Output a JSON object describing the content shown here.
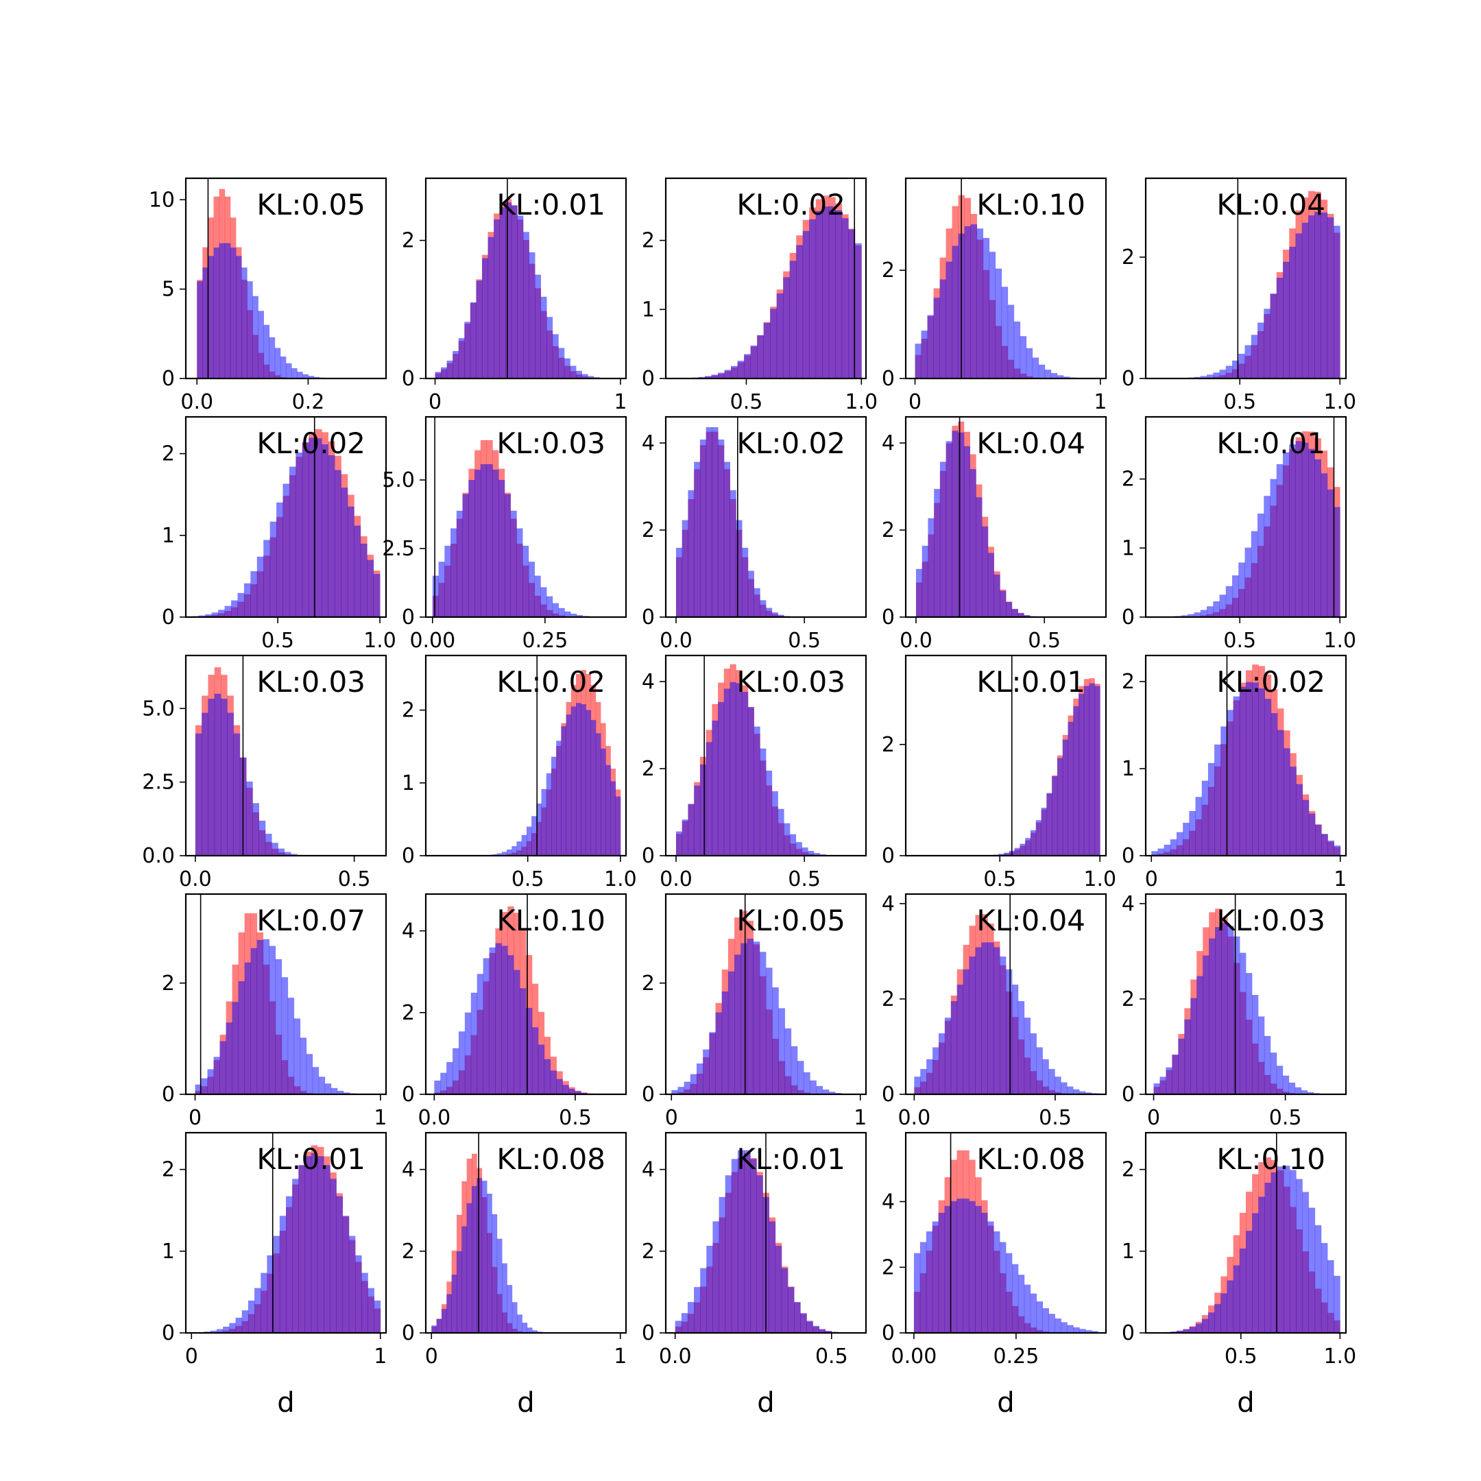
{
  "chart_data": {
    "type": "histogram-grid",
    "rows": 5,
    "cols": 5,
    "colors": {
      "series_a": "#ff0000",
      "series_b": "#0000ff",
      "overlap": "#7f3fbf",
      "marker": "#000000"
    },
    "series_opacity": 0.5,
    "xlabel": "d",
    "panels": [
      {
        "kl": "KL:0.05",
        "xlim": [
          -0.02,
          0.34
        ],
        "ylim": [
          0,
          11.2
        ],
        "xticks": [
          0.0,
          0.2
        ],
        "xtick_labels": [
          "0.0",
          "0.2"
        ],
        "yticks": [
          0,
          5,
          10
        ],
        "ytick_labels": [
          "0",
          "5",
          "10"
        ],
        "marker": 0.02,
        "a": {
          "mean": 0.045,
          "sd": 0.035,
          "low": 0.0,
          "high": 0.3,
          "peak": 10.6
        },
        "b": {
          "mean": 0.05,
          "sd": 0.055,
          "low": 0.0,
          "high": 0.3,
          "peak": 7.6
        }
      },
      {
        "kl": "KL:0.01",
        "xlim": [
          -0.05,
          1.03
        ],
        "ylim": [
          0,
          2.9
        ],
        "xticks": [
          0,
          1
        ],
        "xtick_labels": [
          "0",
          "1"
        ],
        "yticks": [
          0,
          2
        ],
        "ytick_labels": [
          "0",
          "2"
        ],
        "marker": 0.39,
        "a": {
          "mean": 0.39,
          "sd": 0.14,
          "low": 0.0,
          "high": 0.95,
          "peak": 2.6
        },
        "b": {
          "mean": 0.4,
          "sd": 0.15,
          "low": 0.0,
          "high": 0.95,
          "peak": 2.55
        }
      },
      {
        "kl": "KL:0.02",
        "xlim": [
          0.15,
          1.02
        ],
        "ylim": [
          0,
          2.9
        ],
        "xticks": [
          0.5,
          1.0
        ],
        "xtick_labels": [
          "0.5",
          "1.0"
        ],
        "yticks": [
          0,
          1,
          2
        ],
        "ytick_labels": [
          "0",
          "1",
          "2"
        ],
        "marker": 0.97,
        "a": {
          "mean": 0.85,
          "sd": 0.17,
          "low": 0.15,
          "high": 1.0,
          "peak": 2.65
        },
        "b": {
          "mean": 0.86,
          "sd": 0.18,
          "low": 0.15,
          "high": 1.0,
          "peak": 2.5
        }
      },
      {
        "kl": "KL:0.10",
        "xlim": [
          -0.05,
          1.03
        ],
        "ylim": [
          0,
          3.7
        ],
        "xticks": [
          0,
          1
        ],
        "xtick_labels": [
          "0",
          "1"
        ],
        "yticks": [
          0,
          2
        ],
        "ytick_labels": [
          "0",
          "2"
        ],
        "marker": 0.25,
        "a": {
          "mean": 0.26,
          "sd": 0.12,
          "low": 0.0,
          "high": 1.0,
          "peak": 3.4
        },
        "b": {
          "mean": 0.31,
          "sd": 0.17,
          "low": 0.0,
          "high": 1.0,
          "peak": 2.85
        }
      },
      {
        "kl": "KL:0.04",
        "xlim": [
          0.03,
          1.03
        ],
        "ylim": [
          0,
          3.3
        ],
        "xticks": [
          0.5,
          1.0
        ],
        "xtick_labels": [
          "0.5",
          "1.0"
        ],
        "yticks": [
          0,
          2
        ],
        "ytick_labels": [
          "0",
          "2"
        ],
        "marker": 0.49,
        "a": {
          "mean": 0.87,
          "sd": 0.16,
          "low": 0.05,
          "high": 1.0,
          "peak": 3.1
        },
        "b": {
          "mean": 0.9,
          "sd": 0.2,
          "low": 0.05,
          "high": 1.0,
          "peak": 2.75
        }
      },
      {
        "kl": "KL:0.02",
        "xlim": [
          0.05,
          1.03
        ],
        "ylim": [
          0,
          2.45
        ],
        "xticks": [
          0.5,
          1.0
        ],
        "xtick_labels": [
          "0.5",
          "1.0"
        ],
        "yticks": [
          0,
          1,
          2
        ],
        "ytick_labels": [
          "0",
          "1",
          "2"
        ],
        "marker": 0.68,
        "a": {
          "mean": 0.7,
          "sd": 0.17,
          "low": 0.05,
          "high": 1.0,
          "peak": 2.3
        },
        "b": {
          "mean": 0.68,
          "sd": 0.18,
          "low": 0.05,
          "high": 1.0,
          "peak": 2.2
        }
      },
      {
        "kl": "KL:0.03",
        "xlim": [
          -0.015,
          0.43
        ],
        "ylim": [
          0,
          7.3
        ],
        "xticks": [
          0.0,
          0.25
        ],
        "xtick_labels": [
          "0.00",
          "0.25"
        ],
        "yticks": [
          0,
          2.5,
          5.0
        ],
        "ytick_labels": [
          "0",
          "2.5",
          "5.0"
        ],
        "marker": 0.005,
        "a": {
          "mean": 0.12,
          "sd": 0.055,
          "low": 0.0,
          "high": 0.4,
          "peak": 6.5
        },
        "b": {
          "mean": 0.12,
          "sd": 0.07,
          "low": 0.0,
          "high": 0.4,
          "peak": 5.6
        }
      },
      {
        "kl": "KL:0.02",
        "xlim": [
          -0.04,
          0.74
        ],
        "ylim": [
          0,
          4.6
        ],
        "xticks": [
          0.0,
          0.5
        ],
        "xtick_labels": [
          "0.0",
          "0.5"
        ],
        "yticks": [
          0,
          2,
          4
        ],
        "ytick_labels": [
          "0",
          "2",
          "4"
        ],
        "marker": 0.24,
        "a": {
          "mean": 0.14,
          "sd": 0.085,
          "low": 0.0,
          "high": 0.7,
          "peak": 4.3
        },
        "b": {
          "mean": 0.14,
          "sd": 0.09,
          "low": 0.0,
          "high": 0.7,
          "peak": 4.4
        }
      },
      {
        "kl": "KL:0.04",
        "xlim": [
          -0.04,
          0.74
        ],
        "ylim": [
          0,
          4.6
        ],
        "xticks": [
          0.0,
          0.5
        ],
        "xtick_labels": [
          "0.0",
          "0.5"
        ],
        "yticks": [
          0,
          2,
          4
        ],
        "ytick_labels": [
          "0",
          "2",
          "4"
        ],
        "marker": 0.17,
        "a": {
          "mean": 0.17,
          "sd": 0.085,
          "low": 0.0,
          "high": 0.7,
          "peak": 4.5
        },
        "b": {
          "mean": 0.16,
          "sd": 0.09,
          "low": 0.0,
          "high": 0.7,
          "peak": 4.3
        }
      },
      {
        "kl": "KL:0.01",
        "xlim": [
          0.03,
          1.03
        ],
        "ylim": [
          0,
          2.9
        ],
        "xticks": [
          0.5,
          1.0
        ],
        "xtick_labels": [
          "0.5",
          "1.0"
        ],
        "yticks": [
          0,
          1,
          2
        ],
        "ytick_labels": [
          "0",
          "1",
          "2"
        ],
        "marker": 0.97,
        "a": {
          "mean": 0.84,
          "sd": 0.17,
          "low": 0.05,
          "high": 1.0,
          "peak": 2.7
        },
        "b": {
          "mean": 0.8,
          "sd": 0.19,
          "low": 0.05,
          "high": 1.0,
          "peak": 2.55
        }
      },
      {
        "kl": "KL:0.03",
        "xlim": [
          -0.03,
          0.6
        ],
        "ylim": [
          0,
          6.8
        ],
        "xticks": [
          0.0,
          0.5
        ],
        "xtick_labels": [
          "0.0",
          "0.5"
        ],
        "yticks": [
          0,
          2.5,
          5.0
        ],
        "ytick_labels": [
          "0.0",
          "2.5",
          "5.0"
        ],
        "marker": 0.15,
        "a": {
          "mean": 0.07,
          "sd": 0.07,
          "low": 0.0,
          "high": 0.6,
          "peak": 6.4
        },
        "b": {
          "mean": 0.07,
          "sd": 0.08,
          "low": 0.0,
          "high": 0.6,
          "peak": 5.5
        }
      },
      {
        "kl": "KL:0.02",
        "xlim": [
          -0.05,
          1.03
        ],
        "ylim": [
          0,
          2.75
        ],
        "xticks": [
          0.5,
          1.0
        ],
        "xtick_labels": [
          "0.5",
          "1.0"
        ],
        "yticks": [
          0,
          1,
          2
        ],
        "ytick_labels": [
          "0",
          "1",
          "2"
        ],
        "marker": 0.55,
        "a": {
          "mean": 0.8,
          "sd": 0.13,
          "low": 0.2,
          "high": 1.0,
          "peak": 2.55
        },
        "b": {
          "mean": 0.78,
          "sd": 0.15,
          "low": 0.2,
          "high": 1.0,
          "peak": 2.1
        }
      },
      {
        "kl": "KL:0.03",
        "xlim": [
          -0.04,
          0.74
        ],
        "ylim": [
          0,
          4.6
        ],
        "xticks": [
          0.0,
          0.5
        ],
        "xtick_labels": [
          "0.0",
          "0.5"
        ],
        "yticks": [
          0,
          2,
          4
        ],
        "ytick_labels": [
          "0",
          "2",
          "4"
        ],
        "marker": 0.11,
        "a": {
          "mean": 0.22,
          "sd": 0.1,
          "low": 0.0,
          "high": 0.7,
          "peak": 4.4
        },
        "b": {
          "mean": 0.23,
          "sd": 0.11,
          "low": 0.0,
          "high": 0.7,
          "peak": 4.0
        }
      },
      {
        "kl": "KL:0.01",
        "xlim": [
          0.03,
          1.03
        ],
        "ylim": [
          0,
          3.6
        ],
        "xticks": [
          0.5,
          1.0
        ],
        "xtick_labels": [
          "0.5",
          "1.0"
        ],
        "yticks": [
          0,
          2
        ],
        "ytick_labels": [
          "0",
          "2"
        ],
        "marker": 0.56,
        "a": {
          "mean": 0.95,
          "sd": 0.14,
          "low": 0.2,
          "high": 1.0,
          "peak": 3.2
        },
        "b": {
          "mean": 0.96,
          "sd": 0.15,
          "low": 0.2,
          "high": 1.0,
          "peak": 3.1
        }
      },
      {
        "kl": "KL:0.02",
        "xlim": [
          -0.03,
          1.03
        ],
        "ylim": [
          0,
          2.3
        ],
        "xticks": [
          0,
          1
        ],
        "xtick_labels": [
          "0",
          "1"
        ],
        "yticks": [
          0,
          1,
          2
        ],
        "ytick_labels": [
          "0",
          "1",
          "2"
        ],
        "marker": 0.4,
        "a": {
          "mean": 0.56,
          "sd": 0.17,
          "low": 0.0,
          "high": 1.0,
          "peak": 2.2
        },
        "b": {
          "mean": 0.53,
          "sd": 0.19,
          "low": 0.0,
          "high": 1.0,
          "peak": 2.0
        }
      },
      {
        "kl": "KL:0.07",
        "xlim": [
          -0.05,
          1.03
        ],
        "ylim": [
          0,
          3.6
        ],
        "xticks": [
          0,
          1
        ],
        "xtick_labels": [
          "0",
          "1"
        ],
        "yticks": [
          0,
          2
        ],
        "ytick_labels": [
          "0",
          "2"
        ],
        "marker": 0.03,
        "a": {
          "mean": 0.3,
          "sd": 0.1,
          "low": 0.0,
          "high": 1.0,
          "peak": 3.3
        },
        "b": {
          "mean": 0.37,
          "sd": 0.15,
          "low": 0.0,
          "high": 1.0,
          "peak": 2.8
        }
      },
      {
        "kl": "KL:0.10",
        "xlim": [
          -0.03,
          0.68
        ],
        "ylim": [
          0,
          4.9
        ],
        "xticks": [
          0.0,
          0.5
        ],
        "xtick_labels": [
          "0.0",
          "0.5"
        ],
        "yticks": [
          0,
          2,
          4
        ],
        "ytick_labels": [
          "0",
          "2",
          "4"
        ],
        "marker": 0.33,
        "a": {
          "mean": 0.27,
          "sd": 0.085,
          "low": 0.0,
          "high": 0.65,
          "peak": 4.6
        },
        "b": {
          "mean": 0.23,
          "sd": 0.1,
          "low": 0.0,
          "high": 0.65,
          "peak": 3.7
        }
      },
      {
        "kl": "KL:0.05",
        "xlim": [
          -0.03,
          1.03
        ],
        "ylim": [
          0,
          3.6
        ],
        "xticks": [
          0,
          1
        ],
        "xtick_labels": [
          "0",
          "1"
        ],
        "yticks": [
          0,
          2
        ],
        "ytick_labels": [
          "0",
          "2"
        ],
        "marker": 0.39,
        "a": {
          "mean": 0.38,
          "sd": 0.11,
          "low": 0.0,
          "high": 1.0,
          "peak": 3.3
        },
        "b": {
          "mean": 0.42,
          "sd": 0.15,
          "low": 0.0,
          "high": 1.0,
          "peak": 2.8
        }
      },
      {
        "kl": "KL:0.04",
        "xlim": [
          -0.03,
          0.68
        ],
        "ylim": [
          0,
          4.2
        ],
        "xticks": [
          0.0,
          0.5
        ],
        "xtick_labels": [
          "0.0",
          "0.5"
        ],
        "yticks": [
          0,
          2,
          4
        ],
        "ytick_labels": [
          "0",
          "2",
          "4"
        ],
        "marker": 0.34,
        "a": {
          "mean": 0.24,
          "sd": 0.09,
          "low": 0.0,
          "high": 0.65,
          "peak": 3.8
        },
        "b": {
          "mean": 0.26,
          "sd": 0.12,
          "low": 0.0,
          "high": 0.65,
          "peak": 3.2
        }
      },
      {
        "kl": "KL:0.03",
        "xlim": [
          -0.03,
          0.73
        ],
        "ylim": [
          0,
          4.2
        ],
        "xticks": [
          0.0,
          0.5
        ],
        "xtick_labels": [
          "0",
          "0.5"
        ],
        "yticks": [
          0,
          2,
          4
        ],
        "ytick_labels": [
          "0",
          "2",
          "4"
        ],
        "marker": 0.31,
        "a": {
          "mean": 0.24,
          "sd": 0.09,
          "low": 0.0,
          "high": 0.7,
          "peak": 3.9
        },
        "b": {
          "mean": 0.27,
          "sd": 0.11,
          "low": 0.0,
          "high": 0.7,
          "peak": 3.6
        }
      },
      {
        "kl": "KL:0.01",
        "xlim": [
          -0.03,
          1.03
        ],
        "ylim": [
          0,
          2.45
        ],
        "xticks": [
          0,
          1
        ],
        "xtick_labels": [
          "0",
          "1"
        ],
        "yticks": [
          0,
          1,
          2
        ],
        "ytick_labels": [
          "0",
          "1",
          "2"
        ],
        "marker": 0.43,
        "a": {
          "mean": 0.66,
          "sd": 0.16,
          "low": 0.0,
          "high": 1.0,
          "peak": 2.3
        },
        "b": {
          "mean": 0.65,
          "sd": 0.18,
          "low": 0.0,
          "high": 1.0,
          "peak": 2.2
        }
      },
      {
        "kl": "KL:0.08",
        "xlim": [
          -0.03,
          1.03
        ],
        "ylim": [
          0,
          4.9
        ],
        "xticks": [
          0,
          1
        ],
        "xtick_labels": [
          "0",
          "1"
        ],
        "yticks": [
          0,
          2,
          4
        ],
        "ytick_labels": [
          "0",
          "2",
          "4"
        ],
        "marker": 0.25,
        "a": {
          "mean": 0.22,
          "sd": 0.08,
          "low": 0.0,
          "high": 0.8,
          "peak": 4.4
        },
        "b": {
          "mean": 0.26,
          "sd": 0.1,
          "low": 0.0,
          "high": 0.8,
          "peak": 3.8
        }
      },
      {
        "kl": "KL:0.01",
        "xlim": [
          -0.03,
          0.61
        ],
        "ylim": [
          0,
          4.9
        ],
        "xticks": [
          0.0,
          0.5
        ],
        "xtick_labels": [
          "0.0",
          "0.5"
        ],
        "yticks": [
          0,
          2,
          4
        ],
        "ytick_labels": [
          "0",
          "2",
          "4"
        ],
        "marker": 0.29,
        "a": {
          "mean": 0.23,
          "sd": 0.085,
          "low": 0.0,
          "high": 0.6,
          "peak": 4.4
        },
        "b": {
          "mean": 0.22,
          "sd": 0.09,
          "low": 0.0,
          "high": 0.6,
          "peak": 4.5
        }
      },
      {
        "kl": "KL:0.08",
        "xlim": [
          -0.02,
          0.47
        ],
        "ylim": [
          0,
          6.1
        ],
        "xticks": [
          0.0,
          0.25
        ],
        "xtick_labels": [
          "0.00",
          "0.25"
        ],
        "yticks": [
          0,
          2,
          4
        ],
        "ytick_labels": [
          "0",
          "2",
          "4"
        ],
        "marker": 0.09,
        "a": {
          "mean": 0.12,
          "sd": 0.065,
          "low": 0.0,
          "high": 0.45,
          "peak": 5.6
        },
        "b": {
          "mean": 0.12,
          "sd": 0.11,
          "low": 0.0,
          "high": 0.45,
          "peak": 4.1
        }
      },
      {
        "kl": "KL:0.10",
        "xlim": [
          0.02,
          1.03
        ],
        "ylim": [
          0,
          2.45
        ],
        "xticks": [
          0.5,
          1.0
        ],
        "xtick_labels": [
          "0.5",
          "1.0"
        ],
        "yticks": [
          0,
          1,
          2
        ],
        "ytick_labels": [
          "0",
          "1",
          "2"
        ],
        "marker": 0.68,
        "a": {
          "mean": 0.64,
          "sd": 0.15,
          "low": 0.05,
          "high": 1.0,
          "peak": 2.15
        },
        "b": {
          "mean": 0.72,
          "sd": 0.18,
          "low": 0.05,
          "high": 1.0,
          "peak": 2.05
        }
      }
    ]
  }
}
